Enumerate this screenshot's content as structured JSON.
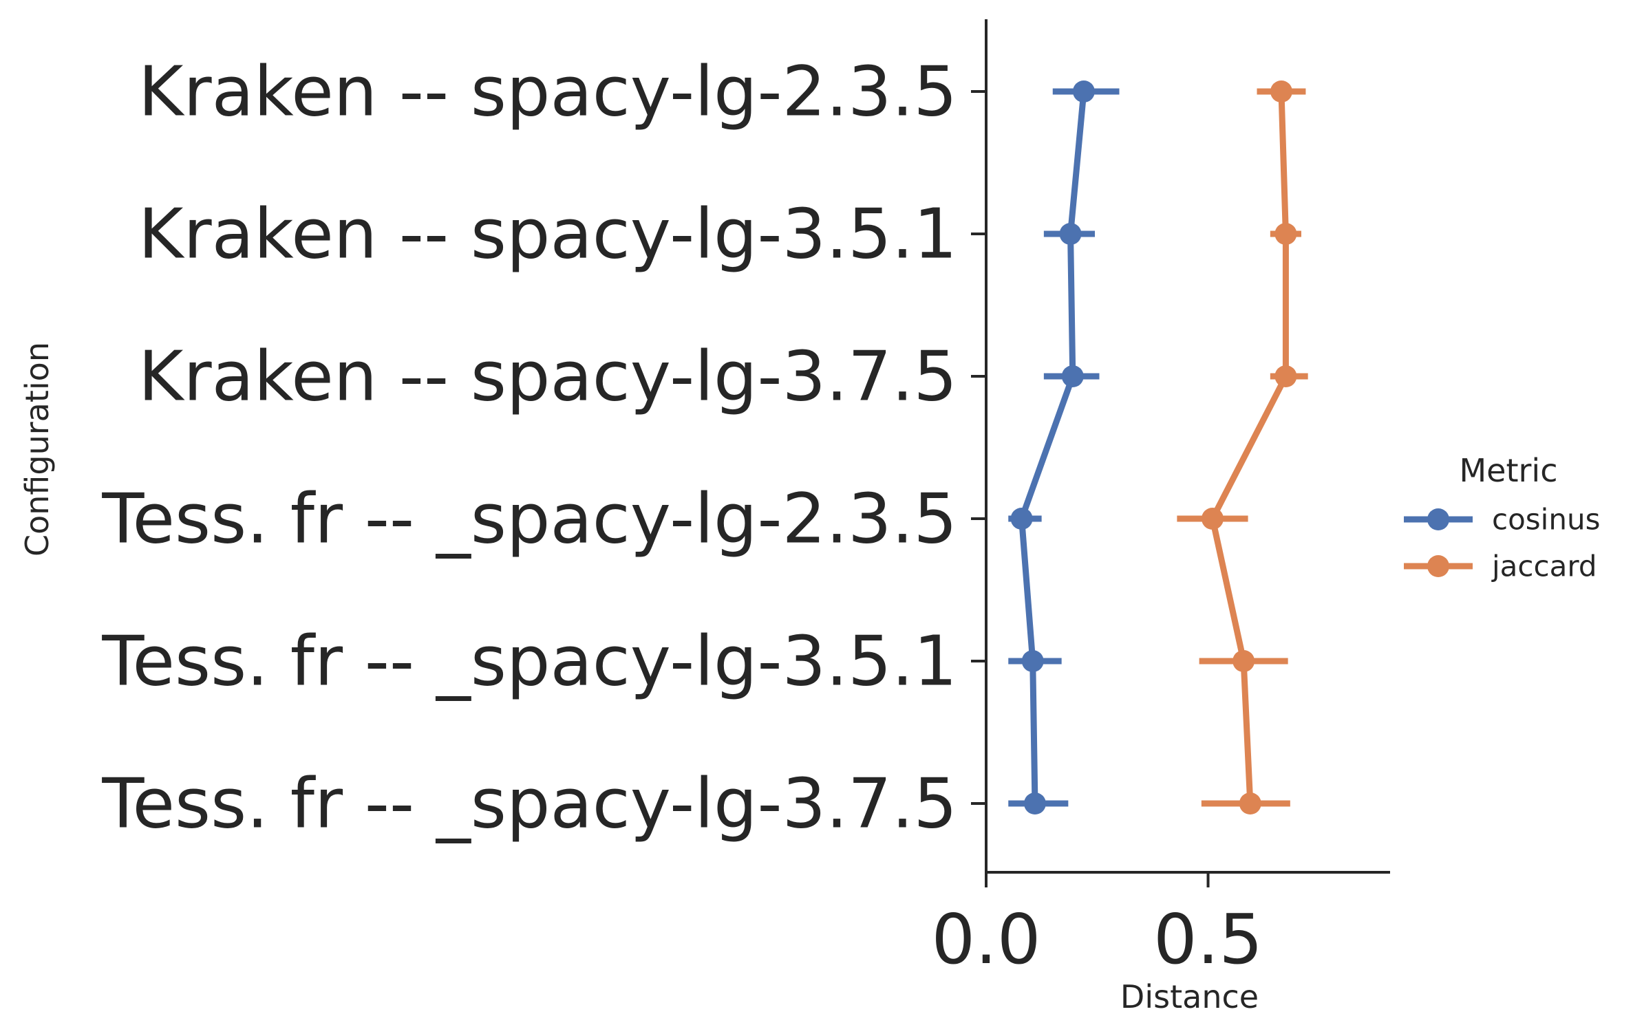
{
  "chart_data": {
    "type": "line",
    "subtype": "pointplot-with-errorbars",
    "orientation": "horizontal",
    "categories": [
      "Kraken -- spacy-lg-2.3.5",
      "Kraken -- spacy-lg-3.5.1",
      "Kraken -- spacy-lg-3.7.5",
      "Tess. fr -- _spacy-lg-2.3.5",
      "Tess. fr -- _spacy-lg-3.5.1",
      "Tess. fr -- _spacy-lg-3.7.5"
    ],
    "series": [
      {
        "name": "cosinus",
        "color": "#4c72b0",
        "values": [
          0.22,
          0.19,
          0.195,
          0.08,
          0.105,
          0.11
        ],
        "error_low": [
          0.15,
          0.13,
          0.13,
          0.05,
          0.05,
          0.05
        ],
        "error_high": [
          0.3,
          0.245,
          0.255,
          0.125,
          0.17,
          0.185
        ]
      },
      {
        "name": "jaccard",
        "color": "#dd8452",
        "values": [
          0.665,
          0.675,
          0.675,
          0.51,
          0.58,
          0.595
        ],
        "error_low": [
          0.61,
          0.64,
          0.64,
          0.43,
          0.48,
          0.485
        ],
        "error_high": [
          0.72,
          0.71,
          0.725,
          0.59,
          0.68,
          0.685
        ]
      }
    ],
    "xlabel": "Distance",
    "ylabel": "Configuration",
    "xlim": [
      0,
      0.91
    ],
    "xticks": [
      0.0,
      0.5
    ],
    "xtick_labels": [
      "0.0",
      "0.5"
    ],
    "grid": false,
    "legend": {
      "title": "Metric",
      "placement": "center-right-outside"
    }
  }
}
